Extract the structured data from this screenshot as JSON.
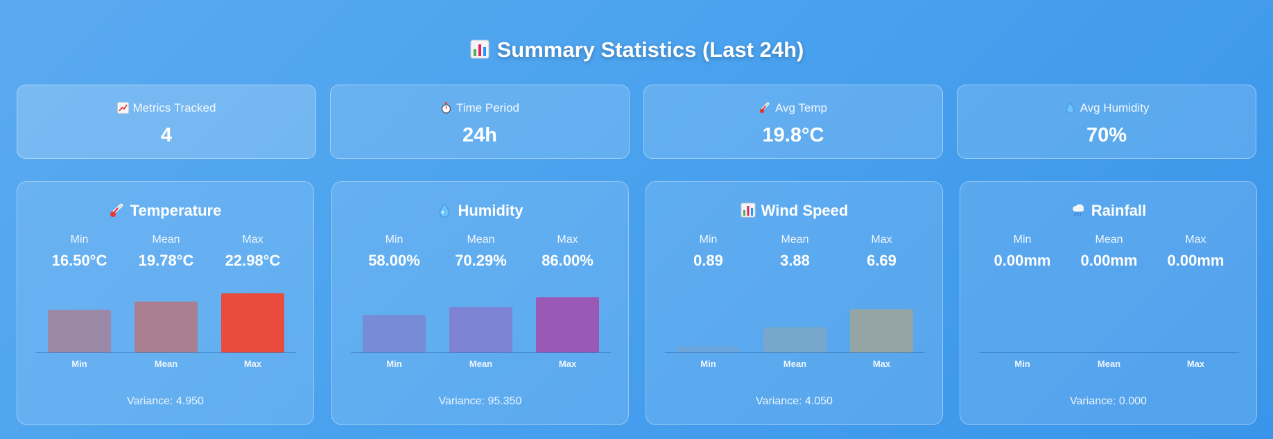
{
  "header": {
    "title": "Summary Statistics (Last 24h)",
    "icon": "bar-chart-icon"
  },
  "kpis": [
    {
      "id": "metrics",
      "icon": "trend-up-icon",
      "label": "Metrics Tracked",
      "value": "4"
    },
    {
      "id": "period",
      "icon": "stopwatch-icon",
      "label": "Time Period",
      "value": "24h"
    },
    {
      "id": "temp",
      "icon": "thermometer-icon",
      "label": "Avg Temp",
      "value": "19.8°C"
    },
    {
      "id": "humidity",
      "icon": "droplet-icon",
      "label": "Avg Humidity",
      "value": "70%"
    }
  ],
  "stat_labels": [
    "Min",
    "Mean",
    "Max"
  ],
  "cards": [
    {
      "id": "temperature",
      "title": "Temperature",
      "icon": "thermometer-icon",
      "stats": [
        "16.50°C",
        "19.78°C",
        "22.98°C"
      ],
      "variance": "Variance: 4.950",
      "colors": [
        "#9b8aa7",
        "#ab7f92",
        "#e74c3c"
      ]
    },
    {
      "id": "humidity",
      "title": "Humidity",
      "icon": "droplet-icon",
      "stats": [
        "58.00%",
        "70.29%",
        "86.00%"
      ],
      "variance": "Variance: 95.350",
      "colors": [
        "#768cd6",
        "#7d82d3",
        "#9b59b6"
      ]
    },
    {
      "id": "wind-speed",
      "title": "Wind Speed",
      "icon": "bar-chart-icon",
      "stats": [
        "0.89",
        "3.88",
        "6.69"
      ],
      "variance": "Variance: 4.050",
      "colors": [
        "#6aa6dc",
        "#77a8cc",
        "#95a5a6"
      ]
    },
    {
      "id": "rainfall",
      "title": "Rainfall",
      "icon": "rain-cloud-icon",
      "stats": [
        "0.00mm",
        "0.00mm",
        "0.00mm"
      ],
      "variance": "Variance: 0.000",
      "colors": [
        "#5aaaf0",
        "#5aaaf0",
        "#5aaaf0"
      ]
    }
  ],
  "chart_data": [
    {
      "type": "bar",
      "title": "Temperature",
      "categories": [
        "Min",
        "Mean",
        "Max"
      ],
      "values": [
        16.5,
        19.78,
        22.98
      ],
      "unit": "°C"
    },
    {
      "type": "bar",
      "title": "Humidity",
      "categories": [
        "Min",
        "Mean",
        "Max"
      ],
      "values": [
        58.0,
        70.29,
        86.0
      ],
      "unit": "%"
    },
    {
      "type": "bar",
      "title": "Wind Speed",
      "categories": [
        "Min",
        "Mean",
        "Max"
      ],
      "values": [
        0.89,
        3.88,
        6.69
      ]
    },
    {
      "type": "bar",
      "title": "Rainfall",
      "categories": [
        "Min",
        "Mean",
        "Max"
      ],
      "values": [
        0.0,
        0.0,
        0.0
      ],
      "unit": "mm"
    }
  ]
}
